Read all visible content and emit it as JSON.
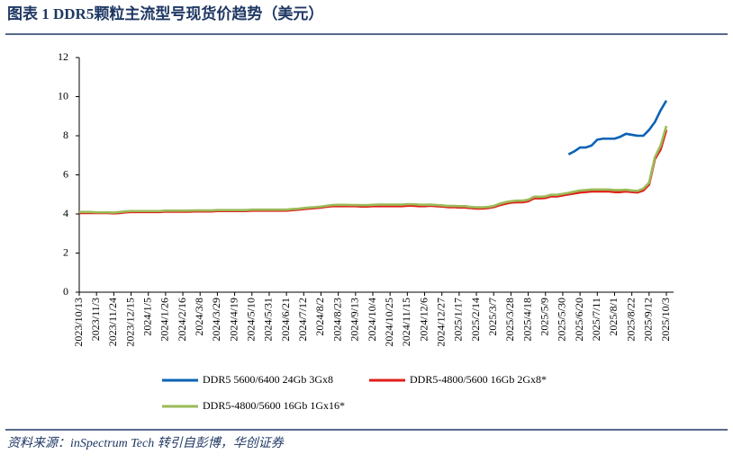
{
  "header": {
    "title": "图表 1   DDR5颗粒主流型号现货价趋势（美元）"
  },
  "chart_data": {
    "type": "line",
    "categories": [
      "2023/10/13",
      null,
      null,
      "2023/11/3",
      null,
      null,
      "2023/11/24",
      null,
      null,
      "2023/12/15",
      null,
      null,
      "2024/1/5",
      null,
      null,
      "2024/1/26",
      null,
      null,
      "2024/2/16",
      null,
      null,
      "2024/3/8",
      null,
      null,
      "2024/3/29",
      null,
      null,
      "2024/4/19",
      null,
      null,
      "2024/5/10",
      null,
      null,
      "2024/5/31",
      null,
      null,
      "2024/6/21",
      null,
      null,
      "2024/7/12",
      null,
      null,
      "2024/8/2",
      null,
      null,
      "2024/8/23",
      null,
      null,
      "2024/9/13",
      null,
      null,
      "2024/10/4",
      null,
      null,
      "2024/10/25",
      null,
      null,
      "2024/11/15",
      null,
      null,
      "2024/12/6",
      null,
      null,
      "2024/12/27",
      null,
      null,
      "2025/1/17",
      null,
      null,
      "2025/2/14",
      null,
      null,
      "2025/3/7",
      null,
      null,
      "2025/3/28",
      null,
      null,
      "2025/4/18",
      null,
      null,
      "2025/5/9",
      null,
      null,
      "2025/5/30",
      null,
      null,
      "2025/6/20",
      null,
      null,
      "2025/7/11",
      null,
      null,
      "2025/8/1",
      null,
      null,
      "2025/8/22",
      null,
      null,
      "2025/9/12",
      null,
      null,
      "2025/10/3"
    ],
    "series": [
      {
        "name": "DDR5 5600/6400 24Gb 3Gx8",
        "color": "#0a62b5",
        "values": [
          null,
          null,
          null,
          null,
          null,
          null,
          null,
          null,
          null,
          null,
          null,
          null,
          null,
          null,
          null,
          null,
          null,
          null,
          null,
          null,
          null,
          null,
          null,
          null,
          null,
          null,
          null,
          null,
          null,
          null,
          null,
          null,
          null,
          null,
          null,
          null,
          null,
          null,
          null,
          null,
          null,
          null,
          null,
          null,
          null,
          null,
          null,
          null,
          null,
          null,
          null,
          null,
          null,
          null,
          null,
          null,
          null,
          null,
          null,
          null,
          null,
          null,
          null,
          null,
          null,
          null,
          null,
          null,
          null,
          null,
          null,
          null,
          null,
          null,
          null,
          null,
          null,
          null,
          null,
          null,
          null,
          null,
          null,
          null,
          null,
          7.05,
          7.2,
          7.4,
          7.4,
          7.5,
          7.8,
          7.85,
          7.85,
          7.85,
          7.95,
          8.1,
          8.05,
          8.0,
          8.0,
          8.3,
          8.7,
          9.3,
          9.8
        ]
      },
      {
        "name": "DDR5-4800/5600 16Gb 2Gx8*",
        "color": "#e0201b",
        "values": [
          4.05,
          4.05,
          4.05,
          4.05,
          4.05,
          4.05,
          4.03,
          4.05,
          4.08,
          4.1,
          4.1,
          4.1,
          4.1,
          4.1,
          4.1,
          4.12,
          4.12,
          4.12,
          4.12,
          4.12,
          4.13,
          4.13,
          4.13,
          4.13,
          4.15,
          4.15,
          4.15,
          4.15,
          4.15,
          4.15,
          4.17,
          4.17,
          4.17,
          4.17,
          4.17,
          4.17,
          4.17,
          4.2,
          4.22,
          4.25,
          4.28,
          4.3,
          4.33,
          4.37,
          4.4,
          4.4,
          4.4,
          4.4,
          4.4,
          4.38,
          4.38,
          4.4,
          4.4,
          4.4,
          4.4,
          4.4,
          4.4,
          4.42,
          4.42,
          4.4,
          4.4,
          4.42,
          4.4,
          4.38,
          4.35,
          4.35,
          4.33,
          4.33,
          4.3,
          4.28,
          4.28,
          4.3,
          4.35,
          4.45,
          4.52,
          4.58,
          4.6,
          4.6,
          4.65,
          4.8,
          4.8,
          4.82,
          4.9,
          4.9,
          4.95,
          5.0,
          5.05,
          5.1,
          5.12,
          5.15,
          5.15,
          5.15,
          5.15,
          5.12,
          5.12,
          5.15,
          5.12,
          5.1,
          5.2,
          5.5,
          6.8,
          7.3,
          8.3
        ]
      },
      {
        "name": "DDR5-4800/5600 16Gb 1Gx16*",
        "color": "#9bbb59",
        "values": [
          4.1,
          4.1,
          4.1,
          4.08,
          4.08,
          4.08,
          4.07,
          4.1,
          4.13,
          4.15,
          4.15,
          4.15,
          4.15,
          4.15,
          4.15,
          4.17,
          4.17,
          4.17,
          4.17,
          4.17,
          4.18,
          4.18,
          4.18,
          4.18,
          4.2,
          4.2,
          4.2,
          4.2,
          4.2,
          4.2,
          4.22,
          4.22,
          4.22,
          4.22,
          4.22,
          4.22,
          4.22,
          4.25,
          4.27,
          4.3,
          4.33,
          4.35,
          4.38,
          4.42,
          4.46,
          4.47,
          4.47,
          4.46,
          4.46,
          4.45,
          4.45,
          4.47,
          4.48,
          4.48,
          4.48,
          4.48,
          4.48,
          4.5,
          4.5,
          4.48,
          4.47,
          4.48,
          4.46,
          4.44,
          4.41,
          4.41,
          4.4,
          4.4,
          4.36,
          4.34,
          4.34,
          4.36,
          4.41,
          4.52,
          4.6,
          4.65,
          4.68,
          4.68,
          4.73,
          4.88,
          4.88,
          4.9,
          4.98,
          4.98,
          5.03,
          5.08,
          5.14,
          5.2,
          5.22,
          5.25,
          5.25,
          5.25,
          5.25,
          5.22,
          5.22,
          5.24,
          5.2,
          5.18,
          5.3,
          5.6,
          6.9,
          7.5,
          8.5
        ]
      }
    ],
    "ylim": [
      0,
      12
    ],
    "yticks": [
      0,
      2,
      4,
      6,
      8,
      10,
      12
    ],
    "grid": false
  },
  "footer": {
    "source": "资料来源：inSpectrum Tech 转引自彭博，华创证券"
  }
}
